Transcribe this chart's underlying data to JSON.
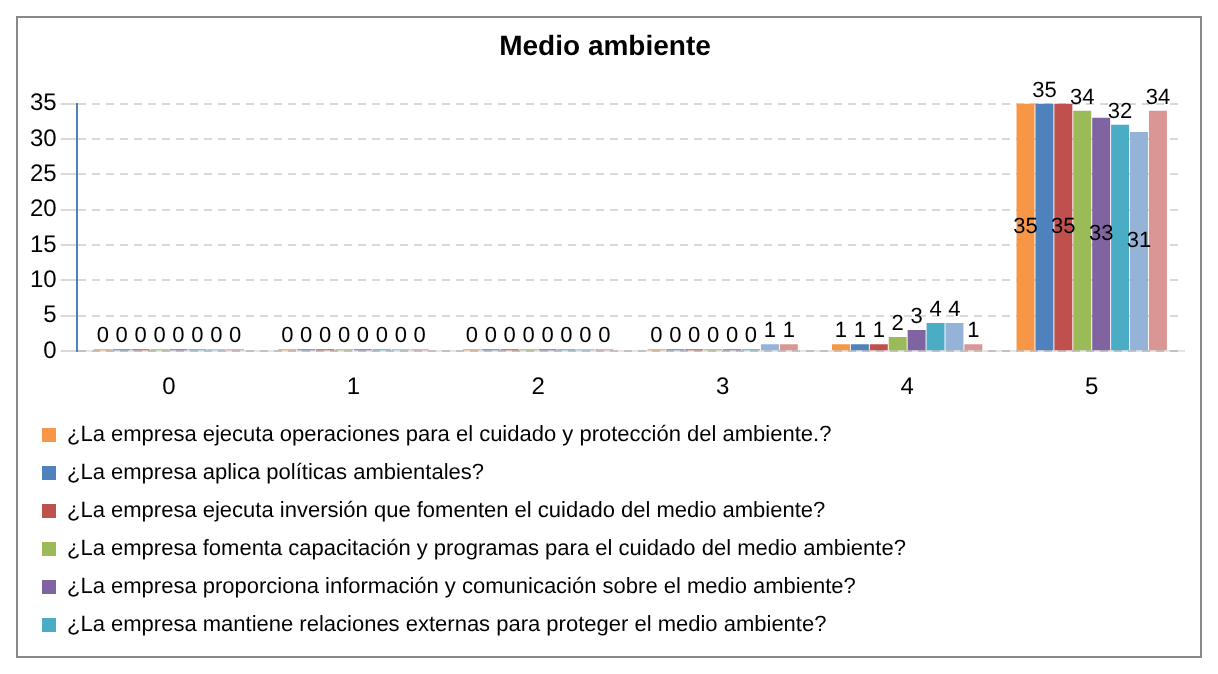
{
  "chart_data": {
    "type": "bar",
    "title": "Medio ambiente",
    "categories": [
      "0",
      "1",
      "2",
      "3",
      "4",
      "5"
    ],
    "series": [
      {
        "name": "¿La empresa ejecuta operaciones para el cuidado y protección del ambiente.?",
        "color": "#f79646",
        "values": [
          0,
          0,
          0,
          0,
          1,
          35
        ]
      },
      {
        "name": "¿La empresa aplica políticas ambientales?",
        "color": "#4f81bd",
        "values": [
          0,
          0,
          0,
          0,
          1,
          35
        ]
      },
      {
        "name": "¿La empresa ejecuta inversión que fomenten el cuidado del medio ambiente?",
        "color": "#c0504d",
        "values": [
          0,
          0,
          0,
          0,
          1,
          35
        ]
      },
      {
        "name": "¿La empresa fomenta capacitación y programas para el cuidado del medio ambiente?",
        "color": "#9bbb59",
        "values": [
          0,
          0,
          0,
          0,
          2,
          34
        ]
      },
      {
        "name": "¿La empresa proporciona información y comunicación sobre el medio ambiente?",
        "color": "#8064a2",
        "values": [
          0,
          0,
          0,
          0,
          3,
          33
        ]
      },
      {
        "name": "¿La empresa mantiene relaciones externas para proteger el medio ambiente?",
        "color": "#4bacc6",
        "values": [
          0,
          0,
          0,
          0,
          4,
          32
        ]
      },
      {
        "color": "#95b3d7",
        "values": [
          0,
          0,
          0,
          1,
          4,
          31
        ]
      },
      {
        "color": "#d99694",
        "values": [
          0,
          0,
          0,
          1,
          1,
          34
        ]
      }
    ],
    "ylim": [
      0,
      35
    ],
    "yticks": [
      0,
      5,
      10,
      15,
      20,
      25,
      30,
      35
    ],
    "grid": "y",
    "legend": "bottom",
    "data_labels": true
  }
}
